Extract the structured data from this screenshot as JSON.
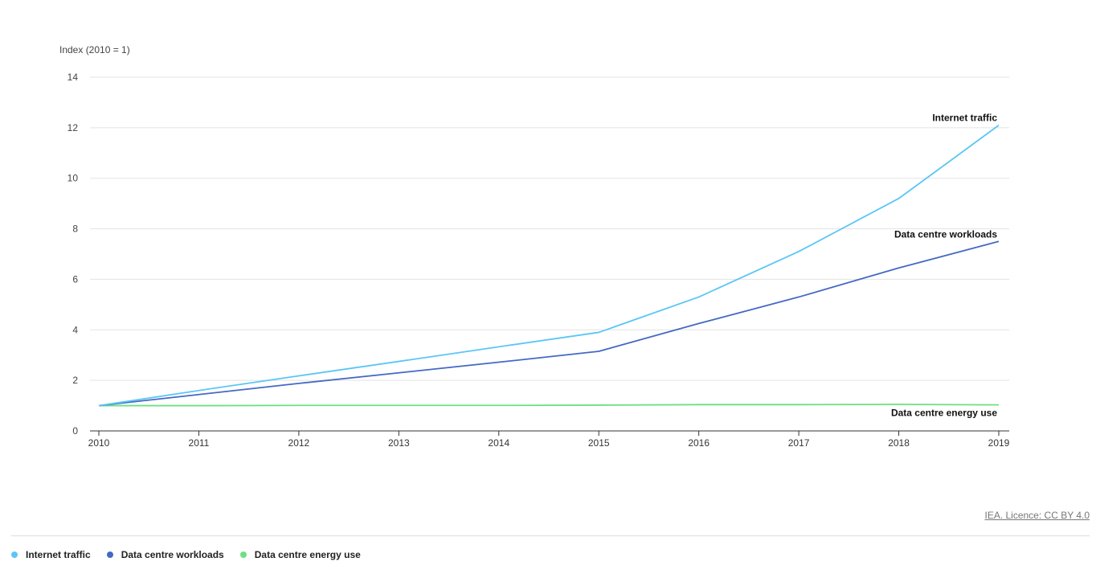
{
  "chart_data": {
    "type": "line",
    "title": "",
    "xlabel": "",
    "ylabel": "Index (2010 = 1)",
    "ylim": [
      0,
      14
    ],
    "yticks": [
      0,
      2,
      4,
      6,
      8,
      10,
      12,
      14
    ],
    "x": [
      "2010",
      "2011",
      "2012",
      "2013",
      "2014",
      "2015",
      "2016",
      "2017",
      "2018",
      "2019"
    ],
    "grid": true,
    "legend_position": "bottom",
    "series": [
      {
        "name": "Internet traffic",
        "color": "#5BC6F5",
        "values": [
          1.0,
          1.6,
          2.18,
          2.75,
          3.33,
          3.9,
          5.3,
          7.1,
          9.2,
          12.1
        ]
      },
      {
        "name": "Data centre workloads",
        "color": "#4469C4",
        "values": [
          1.0,
          1.44,
          1.88,
          2.3,
          2.72,
          3.15,
          4.25,
          5.3,
          6.45,
          7.5
        ]
      },
      {
        "name": "Data centre energy use",
        "color": "#6BE081",
        "values": [
          1.0,
          1.0,
          1.01,
          1.01,
          1.01,
          1.02,
          1.04,
          1.04,
          1.05,
          1.03
        ]
      }
    ]
  },
  "source": {
    "text": "IEA. Licence: CC BY 4.0"
  }
}
